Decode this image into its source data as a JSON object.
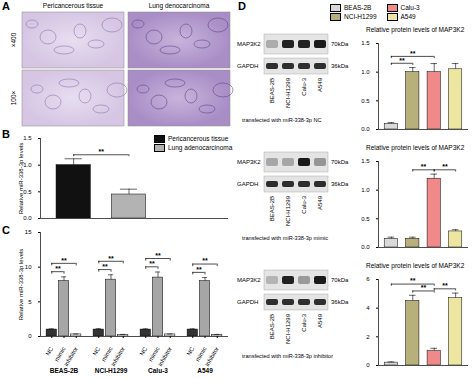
{
  "panel_letters": [
    "A",
    "B",
    "C",
    "D"
  ],
  "panel_a": {
    "columns": [
      "Pericancerous tissue",
      "Lung denocarcinoma"
    ],
    "rows": [
      "×400",
      "100×"
    ]
  },
  "chart_data": [
    {
      "type": "bar",
      "ylabel": "Relative miR-338-3p levels",
      "categories": [
        "Pericancerous tissue",
        "Lung adenocarcinoma"
      ],
      "values": [
        1.0,
        0.45
      ],
      "errors": [
        0.12,
        0.1
      ],
      "colors": [
        "#111111",
        "#b3b3b3"
      ],
      "ylim": [
        0,
        1.5
      ],
      "yticks": [
        {
          "value": 0,
          "label": "0.0"
        },
        0.5,
        {
          "value": 1,
          "label": "1.0"
        },
        1.5
      ],
      "tick_labels": "y",
      "legend": "top-right",
      "significance": [
        {
          "from": "Pericancerous tissue",
          "to": "Lung adenocarcinoma",
          "label": "**"
        }
      ]
    },
    {
      "type": "bar",
      "ylabel": "Relative miR-338-3p levels",
      "categories": [
        "BEAS-2B",
        "NCI-H1299",
        "Calu-3",
        "A549"
      ],
      "series": [
        {
          "name": "NC",
          "color": "#333333",
          "values": [
            1.0,
            1.0,
            1.0,
            1.0
          ],
          "errors": [
            0.1,
            0.12,
            0.1,
            0.1
          ]
        },
        {
          "name": "mimic",
          "color": "#a6a6a6",
          "values": [
            8.0,
            8.2,
            8.5,
            8.0
          ],
          "errors": [
            0.6,
            0.7,
            0.8,
            0.5
          ]
        },
        {
          "name": "inhibitor",
          "color": "#e6e6e6",
          "values": [
            0.3,
            0.25,
            0.3,
            0.25
          ],
          "errors": [
            0.05,
            0.05,
            0.05,
            0.05
          ]
        }
      ],
      "ylim": [
        0,
        15
      ],
      "yticks": [
        0,
        5,
        10,
        15
      ],
      "significance": [
        {
          "category": "BEAS-2B",
          "from": "NC",
          "to": "mimic",
          "label": "**"
        },
        {
          "category": "BEAS-2B",
          "from": "NC",
          "to": "inhibitor",
          "label": "**"
        },
        {
          "category": "NCI-H1299",
          "from": "NC",
          "to": "mimic",
          "label": "**"
        },
        {
          "category": "NCI-H1299",
          "from": "NC",
          "to": "inhibitor",
          "label": "**"
        },
        {
          "category": "Calu-3",
          "from": "NC",
          "to": "mimic",
          "label": "**"
        },
        {
          "category": "Calu-3",
          "from": "NC",
          "to": "inhibitor",
          "label": "**"
        },
        {
          "category": "A549",
          "from": "NC",
          "to": "mimic",
          "label": "**"
        },
        {
          "category": "A549",
          "from": "NC",
          "to": "inhibitor",
          "label": "**"
        }
      ]
    },
    {
      "type": "bar",
      "title": "Relative protein levels of MAP3K2",
      "categories": [
        "BEAS-2B",
        "NCI-H1299",
        "Calu-3",
        "A549"
      ],
      "values": [
        0.1,
        1.0,
        1.0,
        1.05
      ],
      "errors": [
        0.02,
        0.08,
        0.15,
        0.1
      ],
      "colors": [
        "#d9d9d9",
        "#b8b07a",
        "#f08a8a",
        "#ece6a2"
      ],
      "ylim": [
        0,
        1.5
      ],
      "yticks": [
        {
          "value": 0,
          "label": "0.0"
        },
        0.5,
        {
          "value": 1,
          "label": "1.0"
        },
        1.5
      ],
      "tick_labels": "y",
      "legend": "top",
      "significance": [
        {
          "from": "BEAS-2B",
          "to": "NCI-H1299",
          "label": "**"
        },
        {
          "from": "BEAS-2B",
          "to": "Calu-3",
          "label": "**"
        }
      ]
    },
    {
      "type": "bar",
      "title": "Relative protein levels of MAP3K2",
      "categories": [
        "BEAS-2B",
        "NCI-H1299",
        "Calu-3",
        "A549"
      ],
      "values": [
        0.15,
        0.15,
        1.2,
        0.28
      ],
      "errors": [
        0.03,
        0.03,
        0.08,
        0.03
      ],
      "colors": [
        "#d9d9d9",
        "#b8b07a",
        "#f08a8a",
        "#ece6a2"
      ],
      "ylim": [
        0,
        1.5
      ],
      "yticks": [
        {
          "value": 0,
          "label": "0.0"
        },
        0.5,
        {
          "value": 1,
          "label": "1.0"
        },
        1.5
      ],
      "tick_labels": "y",
      "significance": [
        {
          "from": "NCI-H1299",
          "to": "Calu-3",
          "label": "**"
        },
        {
          "from": "Calu-3",
          "to": "A549",
          "label": "**"
        }
      ]
    },
    {
      "type": "bar",
      "title": "Relative protein levels of MAP3K2",
      "categories": [
        "BEAS-2B",
        "NCI-H1299",
        "Calu-3",
        "A549"
      ],
      "values": [
        0.2,
        4.5,
        1.0,
        4.7
      ],
      "errors": [
        0.05,
        0.4,
        0.2,
        0.35
      ],
      "colors": [
        "#d9d9d9",
        "#b8b07a",
        "#f08a8a",
        "#ece6a2"
      ],
      "ylim": [
        0,
        6
      ],
      "yticks": [
        0,
        2,
        4,
        6
      ],
      "tick_labels": "y",
      "significance": [
        {
          "from": "NCI-H1299",
          "to": "Calu-3",
          "label": "**"
        },
        {
          "from": "Calu-3",
          "to": "A549",
          "label": "**"
        },
        {
          "from": "BEAS-2B",
          "to": "Calu-3",
          "label": "**"
        }
      ]
    }
  ],
  "blots": [
    {
      "caption": "transfected with miR-338-3p NC",
      "lanes": [
        "BEAS-2B",
        "NCI-H1299",
        "Calu-3",
        "A549"
      ],
      "rows": [
        {
          "protein": "MAP3K2",
          "size": "70kDa"
        },
        {
          "protein": "GAPDH",
          "size": "36kDa"
        }
      ]
    },
    {
      "caption": "transfected with miR-338-3p mimic",
      "lanes": [
        "BEAS-2B",
        "NCI-H1299",
        "Calu-3",
        "A549"
      ],
      "rows": [
        {
          "protein": "MAP3K2",
          "size": "70kDa"
        },
        {
          "protein": "GAPDH",
          "size": "36kDa"
        }
      ]
    },
    {
      "caption": "transfected with miR-338-3p inhibitor",
      "lanes": [
        "BEAS-2B",
        "NCI-H1299",
        "Calu-3",
        "A549"
      ],
      "rows": [
        {
          "protein": "MAP3K2",
          "size": "70kDa"
        },
        {
          "protein": "GAPDH",
          "size": "36kDa"
        }
      ]
    }
  ]
}
